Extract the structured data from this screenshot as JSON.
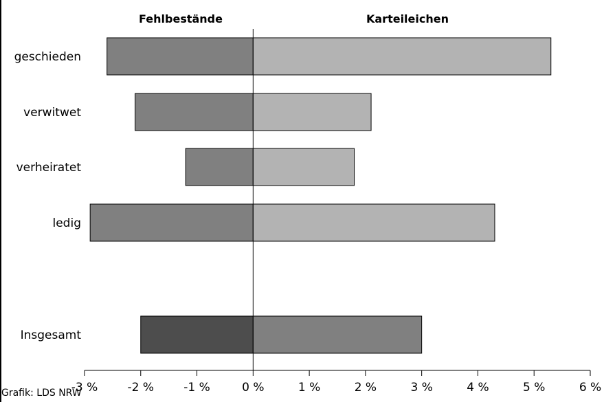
{
  "chart_data": {
    "type": "bar",
    "orientation": "horizontal",
    "layout": "diverging",
    "headers": {
      "left": "Fehlbestände",
      "right": "Karteileichen"
    },
    "categories": [
      "geschieden",
      "verwitwet",
      "verheiratet",
      "ledig",
      "Insgesamt"
    ],
    "series": [
      {
        "name": "Fehlbestände",
        "values": [
          -2.6,
          -2.1,
          -1.2,
          -2.9,
          -2.0
        ]
      },
      {
        "name": "Karteileichen",
        "values": [
          5.3,
          2.1,
          1.8,
          4.3,
          3.0
        ]
      }
    ],
    "xlim": [
      -3,
      6
    ],
    "xticks": [
      -3,
      -2,
      -1,
      0,
      1,
      2,
      3,
      4,
      5,
      6
    ],
    "xtick_labels": [
      "-3 %",
      "-2 %",
      "-1 %",
      "0 %",
      "1 %",
      "2 %",
      "3 %",
      "4 %",
      "5 %",
      "6 %"
    ],
    "colors": {
      "neg": "#808080",
      "pos": "#b3b3b3",
      "total_neg": "#4d4d4d",
      "total_pos": "#808080",
      "stroke": "#000000"
    }
  },
  "source_text": "Grafik: LDS NRW"
}
